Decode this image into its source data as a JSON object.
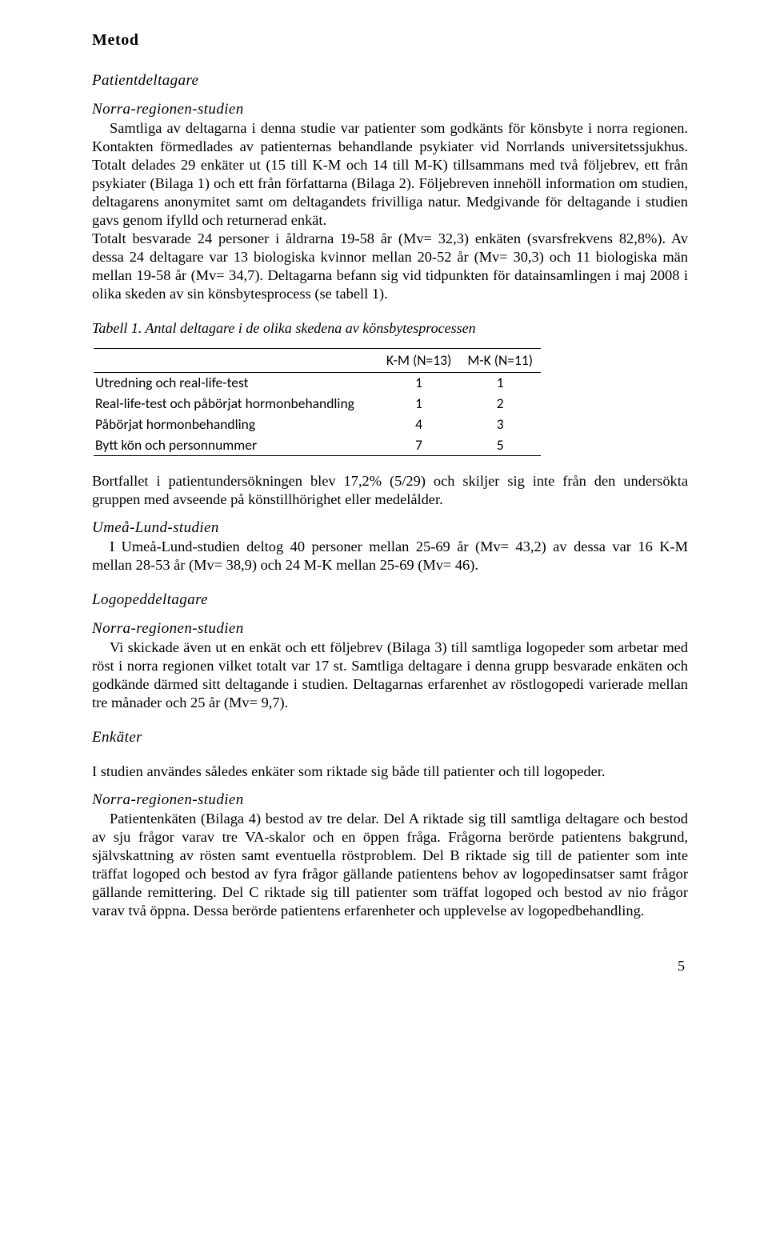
{
  "h_metod": "Metod",
  "h_patientdeltagare": "Patientdeltagare",
  "h_norra1": "Norra-regionen-studien",
  "p1": "Samtliga av deltagarna i denna studie var patienter som godkänts för könsbyte i norra regionen. Kontakten förmedlades av patienternas behandlande psykiater vid Norrlands universitetssjukhus. Totalt delades 29 enkäter ut (15 till K-M och 14 till M-K) tillsammans med två följebrev, ett från psykiater (Bilaga 1) och ett från författarna (Bilaga 2). Följebreven innehöll information om studien, deltagarens anonymitet samt om deltagandets frivilliga natur. Medgivande för deltagande i studien gavs genom ifylld och returnerad enkät.",
  "p2": "Totalt besvarade 24 personer i åldrarna 19-58 år (Mv= 32,3) enkäten (svarsfrekvens 82,8%). Av dessa 24 deltagare var 13 biologiska kvinnor mellan 20-52 år (Mv= 30,3) och 11 biologiska män mellan 19-58 år (Mv= 34,7). Deltagarna befann sig vid tidpunkten för datainsamlingen i maj 2008 i olika skeden av sin könsbytesprocess (se tabell 1).",
  "caption": "Tabell 1. Antal deltagare i de olika skedena av könsbytesprocessen",
  "table": {
    "col1": "K-M (N=13)",
    "col2": "M-K (N=11)",
    "rows": [
      {
        "label": "Utredning och real-life-test",
        "c1": "1",
        "c2": "1"
      },
      {
        "label": "Real-life-test och påbörjat hormonbehandling",
        "c1": "1",
        "c2": "2"
      },
      {
        "label": "Påbörjat hormonbehandling",
        "c1": "4",
        "c2": "3"
      },
      {
        "label": "Bytt kön och personnummer",
        "c1": "7",
        "c2": "5"
      }
    ]
  },
  "p3": "Bortfallet i patientundersökningen blev 17,2% (5/29) och skiljer sig inte från den undersökta gruppen med avseende på könstillhörighet eller medelålder.",
  "h_umea": "Umeå-Lund-studien",
  "p4": "I Umeå-Lund-studien deltog 40 personer mellan 25-69 år (Mv= 43,2) av dessa var 16 K-M mellan 28-53 år (Mv= 38,9) och 24 M-K mellan 25-69 (Mv= 46).",
  "h_logoped": "Logopeddeltagare",
  "h_norra2": "Norra-regionen-studien",
  "p5": "Vi skickade även ut en enkät och ett följebrev (Bilaga 3) till samtliga logopeder som arbetar med röst i norra regionen vilket totalt var 17 st. Samtliga deltagare i denna grupp besvarade enkäten och godkände därmed sitt deltagande i studien. Deltagarnas erfarenhet av röstlogopedi varierade mellan tre månader och 25 år (Mv= 9,7).",
  "h_enkater": "Enkäter",
  "p6": "I studien användes således enkäter som riktade sig både till patienter och till logopeder.",
  "h_norra3": "Norra-regionen-studien",
  "p7": "Patientenkäten (Bilaga 4) bestod av tre delar. Del A riktade sig till samtliga deltagare och bestod av sju frågor varav tre VA-skalor och en öppen fråga. Frågorna berörde patientens bakgrund, självskattning av rösten samt eventuella röstproblem. Del B riktade sig till de patienter som inte träffat logoped och bestod av fyra frågor gällande patientens behov av logopedinsatser samt frågor gällande remittering. Del C riktade sig till patienter som träffat logoped och bestod av nio frågor varav två öppna. Dessa berörde patientens erfarenheter och upplevelse av logopedbehandling.",
  "page_num": "5"
}
